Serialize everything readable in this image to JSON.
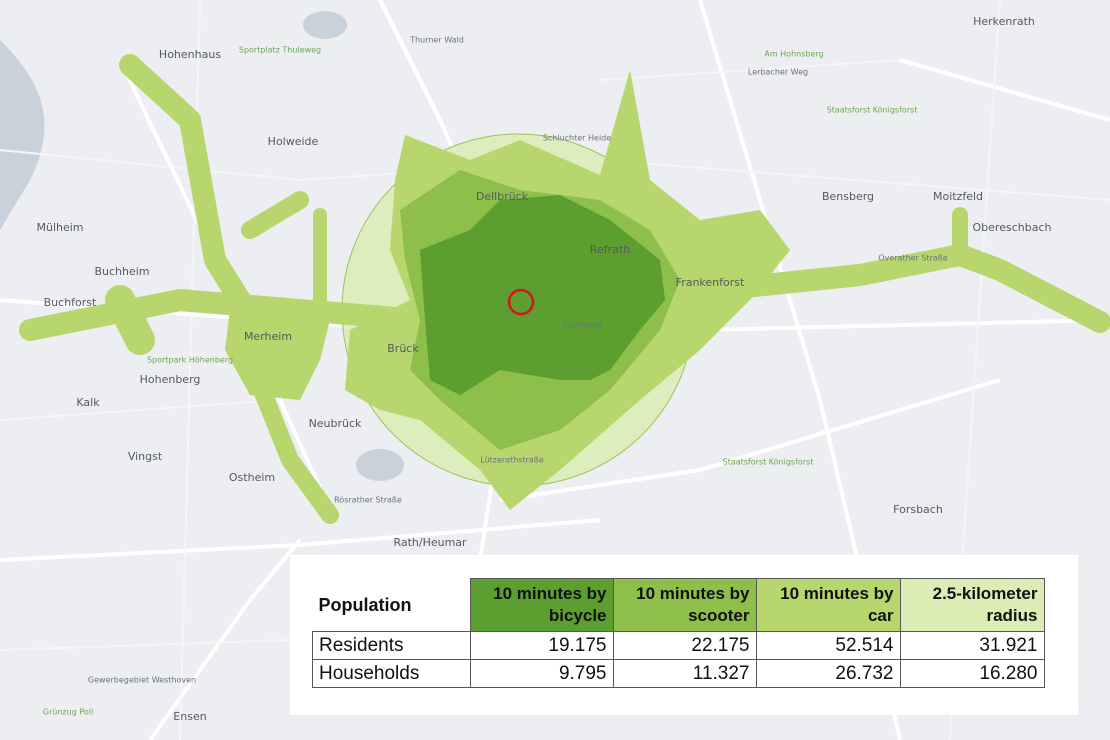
{
  "map": {
    "labels": [
      "Hohenhaus",
      "Holweide",
      "Mülheim",
      "Buchheim",
      "Buchforst",
      "Merheim",
      "Hohenberg",
      "Kalk",
      "Neubrück",
      "Vingst",
      "Ostheim",
      "Rath/Heumar",
      "Dellbrück",
      "Refrath",
      "Brück",
      "Frankenforst",
      "Bensberg",
      "Moitzfeld",
      "Oberesch­bach",
      "Herkenrath",
      "Forsbach",
      "Thurner Wald",
      "Sportplatz Thuleweg",
      "Schluchter Heide",
      "Am Hohnsberg",
      "Staatsforst Königsforst",
      "Staatsforst Königsforst",
      "Lerbacher Weg",
      "Lustheide",
      "Rösrather Straße",
      "Overather Straße",
      "Lützerathstraße",
      "Sportpark Höhenberg",
      "Gewerbegebiet Westhoven",
      "Ensen",
      "Grünzug Poll"
    ]
  },
  "table": {
    "header": [
      "Population",
      "10 minutes by bicycle",
      "10 minutes by scooter",
      "10 minutes by car",
      "2.5-kilometer radius"
    ],
    "rows": [
      [
        "Residents",
        "19.175",
        "22.175",
        "52.514",
        "31.921"
      ],
      [
        "Households",
        "9.795",
        "11.327",
        "26.732",
        "16.280"
      ]
    ]
  }
}
